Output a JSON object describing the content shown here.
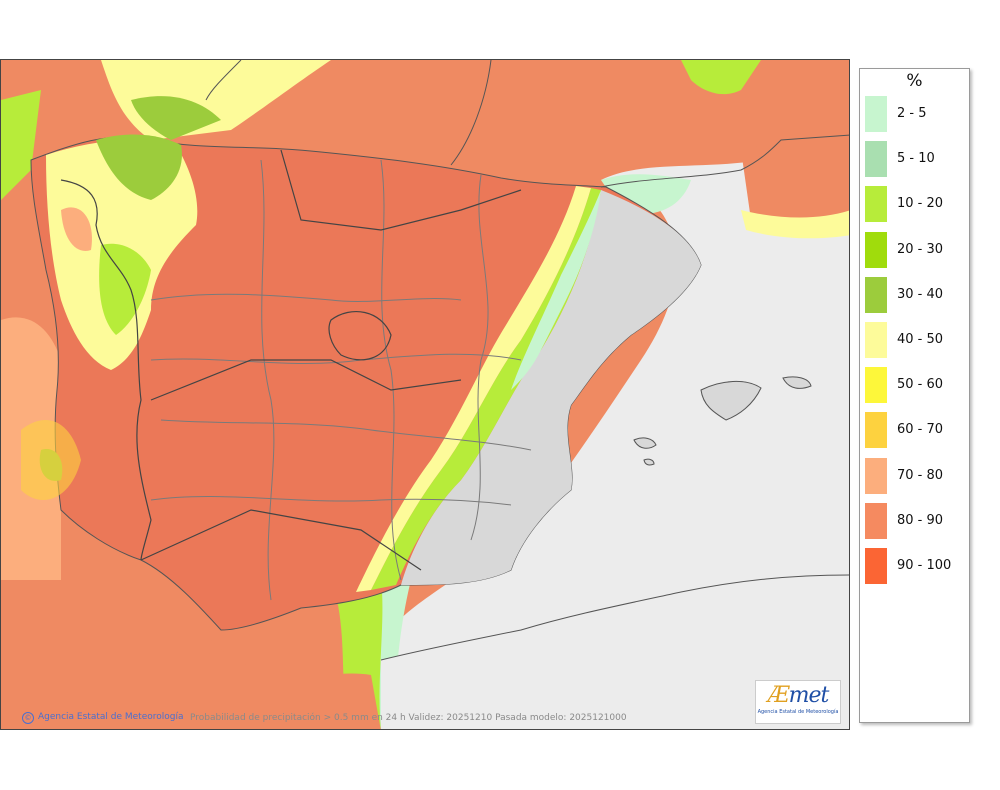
{
  "footer": {
    "agency": "Agencia Estatal de Meteorología",
    "caption": "Probabilidad de precipitación > 0.5 mm en 24 h Validez: 20251210 Pasada modelo: 2025121000"
  },
  "logo": {
    "mark_a": "Æ",
    "mark_rest": "met",
    "subtitle": "Agencia Estatal de Meteorología"
  },
  "legend": {
    "title": "%",
    "items": [
      {
        "label": "2 - 5",
        "color": "#c7f5cf"
      },
      {
        "label": "5 - 10",
        "color": "#a9dfb0"
      },
      {
        "label": "10 - 20",
        "color": "#b7ec3a"
      },
      {
        "label": "20 - 30",
        "color": "#a0dc0c"
      },
      {
        "label": "30 - 40",
        "color": "#9ccc3c"
      },
      {
        "label": "40 - 50",
        "color": "#fdfb9a"
      },
      {
        "label": "50 - 60",
        "color": "#fdf73a"
      },
      {
        "label": "60 - 70",
        "color": "#fdd23f"
      },
      {
        "label": "70 - 80",
        "color": "#fcae7d"
      },
      {
        "label": "80 - 90",
        "color": "#f58a60"
      },
      {
        "label": "90 - 100",
        "color": "#fb6534"
      }
    ]
  },
  "map": {
    "sea_color": "#ef8a62",
    "land_color": "#eb7858",
    "dry_color": "#d8d8d8",
    "border_color": "#555555"
  }
}
